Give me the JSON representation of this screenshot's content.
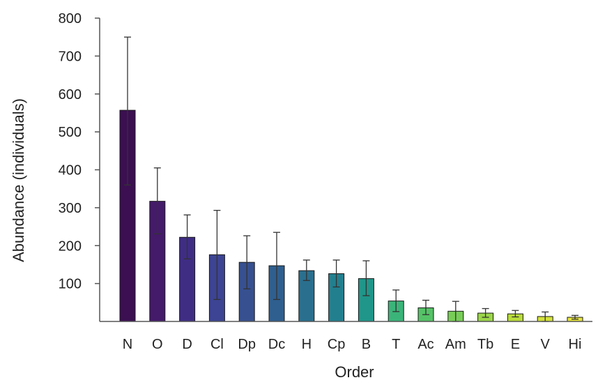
{
  "chart_data": {
    "type": "bar",
    "title": "",
    "xlabel": "Order",
    "ylabel": "Abundance (individuals)",
    "ylim": [
      0,
      800
    ],
    "yticks": [
      100,
      200,
      300,
      400,
      500,
      600,
      700,
      800
    ],
    "grid": false,
    "legend": "none",
    "categories": [
      "N",
      "O",
      "D",
      "Cl",
      "Dp",
      "Dc",
      "H",
      "Cp",
      "B",
      "T",
      "Ac",
      "Am",
      "Tb",
      "E",
      "V",
      "Hi"
    ],
    "values": [
      557,
      317,
      222,
      176,
      156,
      147,
      134,
      126,
      113,
      54,
      36,
      27,
      22,
      20,
      13,
      11
    ],
    "error_upper": [
      750,
      405,
      281,
      293,
      226,
      235,
      162,
      162,
      160,
      83,
      56,
      53,
      34,
      29,
      25,
      16
    ],
    "error_lower": [
      360,
      231,
      165,
      58,
      86,
      58,
      108,
      91,
      68,
      26,
      18,
      0,
      11,
      12,
      0,
      6
    ],
    "bar_colors": [
      "#3b0f51",
      "#441a6a",
      "#3f2d84",
      "#3d4493",
      "#37508f",
      "#2f5f8f",
      "#2a6f8e",
      "#227f8e",
      "#1f9689",
      "#3bb479",
      "#55c267",
      "#78cd57",
      "#9bd54a",
      "#b9dc3b",
      "#d3e13a",
      "#e6e43c"
    ]
  }
}
